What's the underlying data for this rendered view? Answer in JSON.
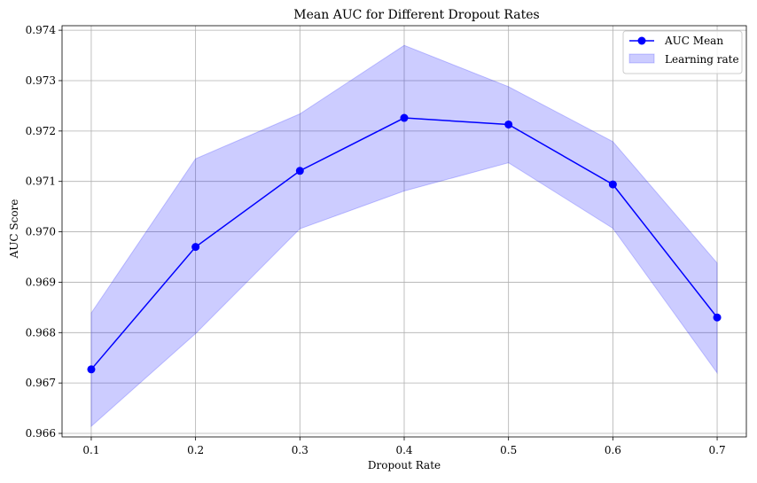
{
  "chart_data": {
    "type": "line",
    "title": "Mean AUC for Different Dropout Rates",
    "xlabel": "Dropout Rate",
    "ylabel": "AUC Score",
    "x": [
      0.1,
      0.2,
      0.3,
      0.4,
      0.5,
      0.6,
      0.7
    ],
    "x_tick_labels": [
      "0.1",
      "0.2",
      "0.3",
      "0.4",
      "0.5",
      "0.6",
      "0.7"
    ],
    "y_ticks": [
      0.966,
      0.967,
      0.968,
      0.969,
      0.97,
      0.971,
      0.972,
      0.973,
      0.974
    ],
    "y_tick_labels": [
      "0.966",
      "0.967",
      "0.968",
      "0.969",
      "0.970",
      "0.971",
      "0.972",
      "0.973",
      "0.974"
    ],
    "xlim": [
      0.072,
      0.728
    ],
    "ylim": [
      0.96593,
      0.97409
    ],
    "grid": true,
    "legend_position": "top-right",
    "series": [
      {
        "name": "AUC Mean",
        "kind": "line-with-markers",
        "color": "#0000ff",
        "values": [
          0.96727,
          0.9697,
          0.97121,
          0.97226,
          0.97213,
          0.97094,
          0.9683
        ]
      },
      {
        "name": "Learning rate",
        "kind": "band",
        "color": "#0000ff",
        "fill_alpha": 0.2,
        "lower": [
          0.96614,
          0.96798,
          0.97006,
          0.97081,
          0.97137,
          0.97007,
          0.9672
        ],
        "upper": [
          0.96839,
          0.97145,
          0.97234,
          0.9737,
          0.97288,
          0.97179,
          0.96938
        ]
      }
    ]
  }
}
